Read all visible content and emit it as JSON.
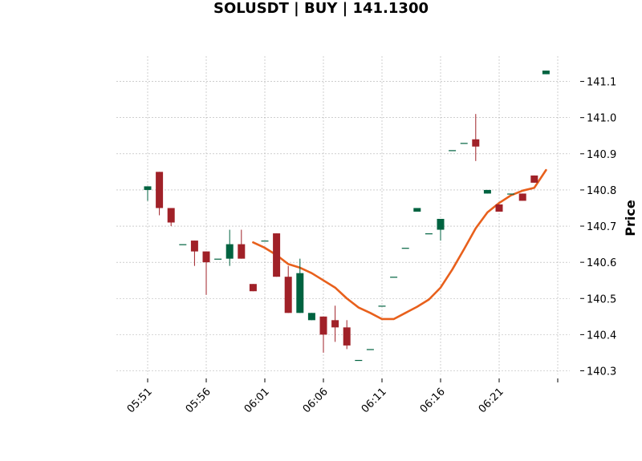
{
  "chart_data": {
    "type": "candlestick",
    "title": "SOLUSDT | BUY | 141.1300",
    "xlabel": "",
    "ylabel": "Price",
    "y_axis_side": "right",
    "ylim": [
      140.29,
      141.17
    ],
    "y_ticks": [
      140.3,
      140.4,
      140.5,
      140.6,
      140.7,
      140.8,
      140.9,
      141.0,
      141.1
    ],
    "x_ticks": [
      "05:51",
      "05:56",
      "06:01",
      "06:06",
      "06:11",
      "06:16",
      "06:21",
      ""
    ],
    "grid": true,
    "up_color": "#006340",
    "down_color": "#a02128",
    "line_color": "#e8601c",
    "times": [
      "05:51",
      "05:52",
      "05:53",
      "05:54",
      "05:55",
      "05:56",
      "05:57",
      "05:58",
      "05:59",
      "06:00",
      "06:01",
      "06:02",
      "06:03",
      "06:04",
      "06:05",
      "06:06",
      "06:07",
      "06:08",
      "06:09",
      "06:10",
      "06:11",
      "06:12",
      "06:13",
      "06:14",
      "06:15",
      "06:16",
      "06:17",
      "06:18",
      "06:19",
      "06:20",
      "06:21",
      "06:22",
      "06:23",
      "06:24",
      "06:25"
    ],
    "candles": [
      {
        "o": 140.8,
        "h": 140.81,
        "l": 140.77,
        "c": 140.81
      },
      {
        "o": 140.85,
        "h": 140.85,
        "l": 140.73,
        "c": 140.75
      },
      {
        "o": 140.75,
        "h": 140.75,
        "l": 140.7,
        "c": 140.71
      },
      {
        "o": 140.65,
        "h": 140.65,
        "l": 140.65,
        "c": 140.65
      },
      {
        "o": 140.66,
        "h": 140.66,
        "l": 140.59,
        "c": 140.63
      },
      {
        "o": 140.63,
        "h": 140.63,
        "l": 140.51,
        "c": 140.6
      },
      {
        "o": 140.61,
        "h": 140.61,
        "l": 140.61,
        "c": 140.61
      },
      {
        "o": 140.61,
        "h": 140.69,
        "l": 140.59,
        "c": 140.65
      },
      {
        "o": 140.65,
        "h": 140.69,
        "l": 140.61,
        "c": 140.61
      },
      {
        "o": 140.54,
        "h": 140.54,
        "l": 140.52,
        "c": 140.52
      },
      {
        "o": 140.66,
        "h": 140.66,
        "l": 140.66,
        "c": 140.66
      },
      {
        "o": 140.68,
        "h": 140.68,
        "l": 140.56,
        "c": 140.56
      },
      {
        "o": 140.56,
        "h": 140.59,
        "l": 140.46,
        "c": 140.46
      },
      {
        "o": 140.46,
        "h": 140.61,
        "l": 140.46,
        "c": 140.57
      },
      {
        "o": 140.44,
        "h": 140.46,
        "l": 140.44,
        "c": 140.46
      },
      {
        "o": 140.45,
        "h": 140.45,
        "l": 140.35,
        "c": 140.4
      },
      {
        "o": 140.44,
        "h": 140.48,
        "l": 140.38,
        "c": 140.42
      },
      {
        "o": 140.42,
        "h": 140.44,
        "l": 140.36,
        "c": 140.37
      },
      {
        "o": 140.33,
        "h": 140.33,
        "l": 140.33,
        "c": 140.33
      },
      {
        "o": 140.36,
        "h": 140.36,
        "l": 140.36,
        "c": 140.36
      },
      {
        "o": 140.48,
        "h": 140.48,
        "l": 140.48,
        "c": 140.48
      },
      {
        "o": 140.56,
        "h": 140.56,
        "l": 140.56,
        "c": 140.56
      },
      {
        "o": 140.64,
        "h": 140.64,
        "l": 140.64,
        "c": 140.64
      },
      {
        "o": 140.74,
        "h": 140.75,
        "l": 140.74,
        "c": 140.75
      },
      {
        "o": 140.68,
        "h": 140.68,
        "l": 140.68,
        "c": 140.68
      },
      {
        "o": 140.69,
        "h": 140.72,
        "l": 140.66,
        "c": 140.72
      },
      {
        "o": 140.91,
        "h": 140.91,
        "l": 140.91,
        "c": 140.91
      },
      {
        "o": 140.93,
        "h": 140.93,
        "l": 140.93,
        "c": 140.93
      },
      {
        "o": 140.94,
        "h": 141.01,
        "l": 140.88,
        "c": 140.92
      },
      {
        "o": 140.79,
        "h": 140.8,
        "l": 140.79,
        "c": 140.8
      },
      {
        "o": 140.76,
        "h": 140.76,
        "l": 140.74,
        "c": 140.74
      },
      {
        "o": 140.79,
        "h": 140.79,
        "l": 140.79,
        "c": 140.79
      },
      {
        "o": 140.79,
        "h": 140.79,
        "l": 140.77,
        "c": 140.77
      },
      {
        "o": 140.84,
        "h": 140.84,
        "l": 140.82,
        "c": 140.82
      },
      {
        "o": 141.12,
        "h": 141.13,
        "l": 141.12,
        "c": 141.13
      }
    ],
    "moving_average": [
      null,
      null,
      null,
      null,
      null,
      null,
      null,
      null,
      null,
      140.655,
      140.64,
      140.62,
      140.595,
      140.585,
      140.57,
      140.55,
      140.53,
      140.5,
      140.475,
      140.46,
      140.443,
      140.443,
      140.46,
      140.477,
      140.497,
      140.53,
      140.58,
      140.636,
      140.694,
      140.738,
      140.764,
      140.785,
      140.798,
      140.806,
      140.855
    ]
  }
}
